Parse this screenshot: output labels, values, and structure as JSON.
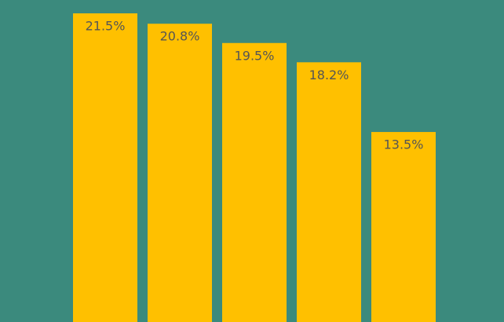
{
  "chart_data": {
    "type": "bar",
    "values": [
      21.5,
      20.8,
      19.5,
      18.2,
      13.5
    ],
    "value_labels": [
      "21.5%",
      "20.8%",
      "19.5%",
      "18.2%",
      "13.5%"
    ],
    "color": "#ffc000",
    "background": "#3b8a7d",
    "ylim": [
      0,
      22.4
    ]
  }
}
